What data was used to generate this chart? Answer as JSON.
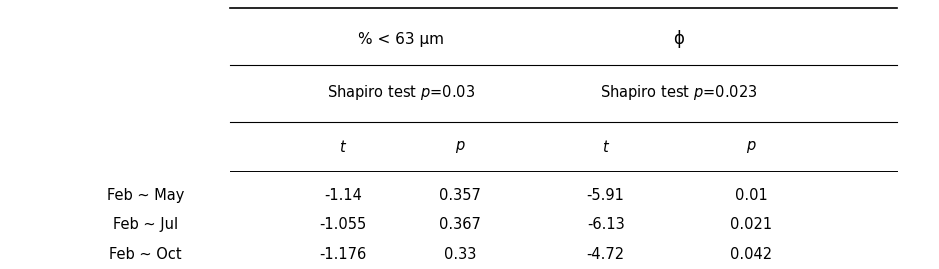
{
  "figsize": [
    9.39,
    2.69
  ],
  "dpi": 100,
  "bg_color": "#ffffff",
  "col1_header": "% < 63 μm",
  "col2_header": "ϕ",
  "shapiro1": "Shapiro test $p$=0.03",
  "shapiro2": "Shapiro test $p$=0.023",
  "sub_headers": [
    "t",
    "p",
    "t",
    "p"
  ],
  "row_labels": [
    "Feb ~ May",
    "Feb ~ Jul",
    "Feb ~ Oct"
  ],
  "data": [
    [
      "-1.14",
      "0.357",
      "-5.91",
      "0.01"
    ],
    [
      "-1.055",
      "0.367",
      "-6.13",
      "0.021"
    ],
    [
      "-1.176",
      "0.33",
      "-4.72",
      "0.042"
    ]
  ],
  "font_size": 10.5,
  "header_font_size": 11
}
